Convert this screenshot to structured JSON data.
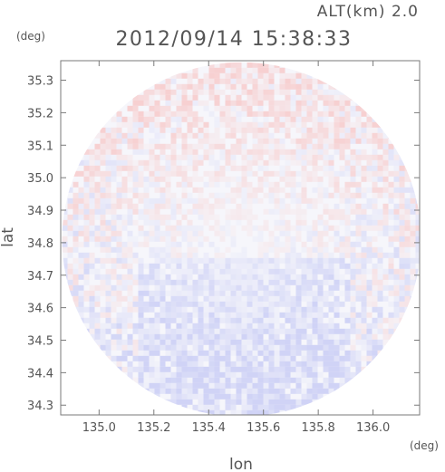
{
  "chart_data": {
    "type": "heatmap",
    "title": "2012/09/14 15:38:33",
    "altitude_label": "ALT(km) 2.0",
    "xlabel": "lon",
    "ylabel": "lat",
    "x_unit": "(deg)",
    "y_unit": "(deg)",
    "xlim": [
      134.86,
      136.17
    ],
    "ylim": [
      34.27,
      35.36
    ],
    "x_ticks": [
      "135.0",
      "135.2",
      "135.4",
      "135.6",
      "135.8",
      "136.0"
    ],
    "y_ticks": [
      "35.3",
      "35.2",
      "35.1",
      "35.0",
      "34.9",
      "34.8",
      "34.7",
      "34.6",
      "34.5",
      "34.4",
      "34.3"
    ],
    "x_tick_values": [
      135.0,
      135.2,
      135.4,
      135.6,
      135.8,
      136.0
    ],
    "y_tick_values": [
      35.3,
      35.2,
      35.1,
      35.0,
      34.9,
      34.8,
      34.7,
      34.6,
      34.5,
      34.4,
      34.3
    ],
    "radar_center": [
      135.52,
      34.81
    ],
    "radar_radius_deg_lon": 0.655,
    "radar_radius_deg_lat": 0.545,
    "grid": false,
    "colors": {
      "positive": "#f7c9c9",
      "negative": "#c9cdf5",
      "neutral": "#f6f6fb",
      "frame": "#7a7a7a"
    }
  }
}
